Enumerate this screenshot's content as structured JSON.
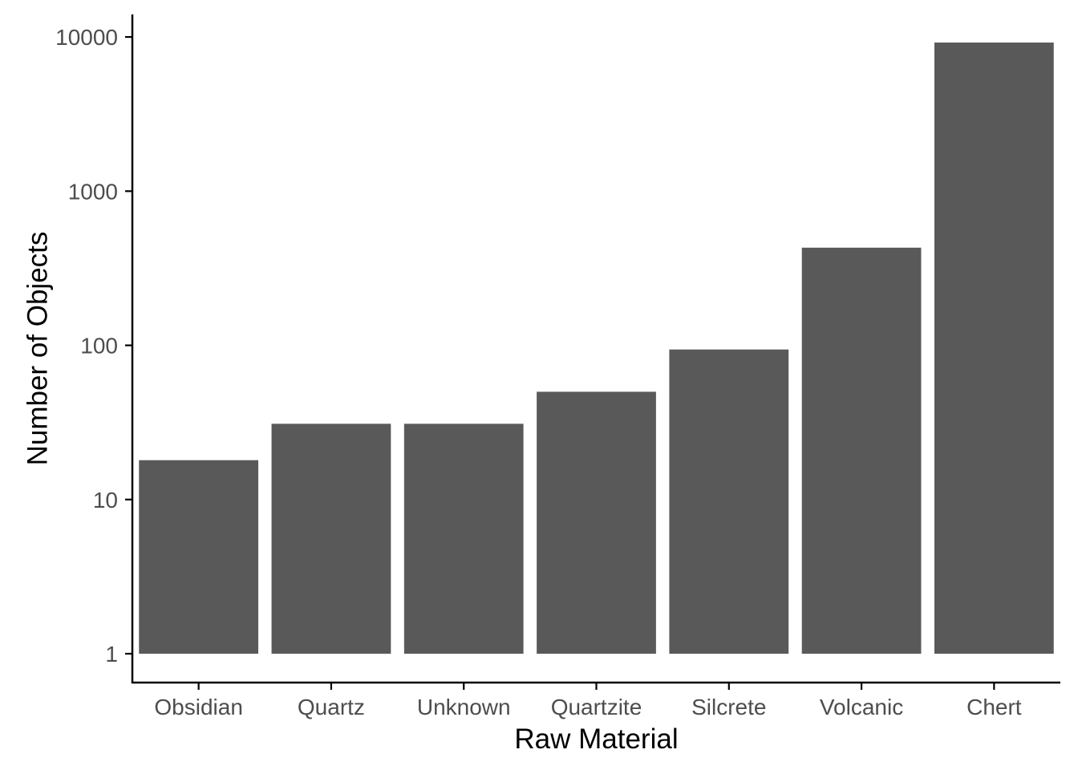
{
  "chart_data": {
    "type": "bar",
    "xlabel": "Raw Material",
    "ylabel": "Number of Objects",
    "y_scale": "log10",
    "ylim": [
      0.65,
      14000
    ],
    "y_ticks": [
      1,
      10,
      100,
      1000,
      10000
    ],
    "y_tick_labels": [
      "1",
      "10",
      "100",
      "1000",
      "10000"
    ],
    "categories": [
      "Obsidian",
      "Quartz",
      "Unknown",
      "Quartzite",
      "Silcrete",
      "Volcanic",
      "Chert"
    ],
    "values": [
      18,
      31,
      31,
      50,
      94,
      430,
      9200
    ],
    "bar_baseline": 1,
    "grid": false,
    "legend": "none",
    "colors": {
      "bar": "#595959",
      "axis_line": "#000000",
      "tick_label": "#4D4D4D",
      "axis_title": "#000000",
      "background": "#FFFFFF"
    }
  }
}
